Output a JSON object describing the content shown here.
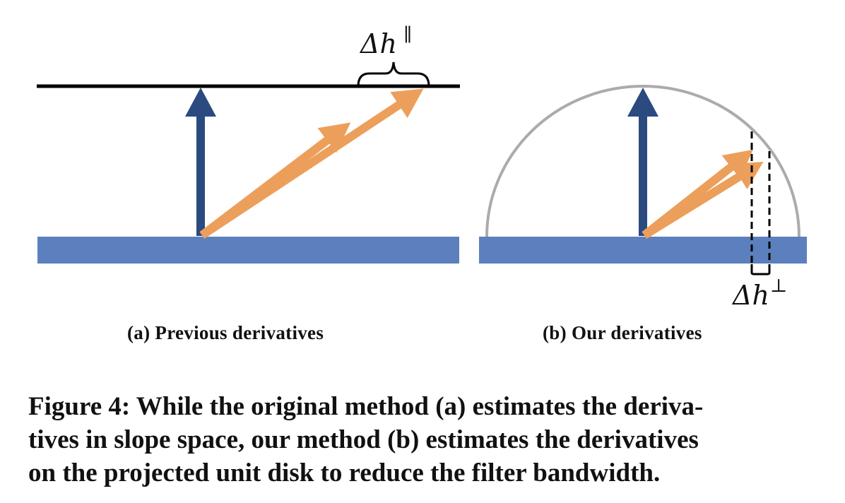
{
  "panel_a": {
    "delta_label": "Δh",
    "delta_superscript": "∥",
    "subcaption": "(a) Previous derivatives"
  },
  "panel_b": {
    "delta_label": "Δh",
    "delta_superscript": "⊥",
    "subcaption": "(b) Our derivatives"
  },
  "caption": {
    "lines": [
      "Figure 4: While the original method (a) estimates the deriva-",
      "tives in slope space, our method (b) estimates the derivatives",
      "on the projected unit disk to reduce the filter bandwidth."
    ]
  },
  "colors": {
    "surface": "#5b80bd",
    "normal_arrow": "#2b4a7f",
    "vector_arrow": "#ec9f5b",
    "plane_line": "#000000",
    "hemisphere": "#ababab",
    "text": "#111111"
  }
}
